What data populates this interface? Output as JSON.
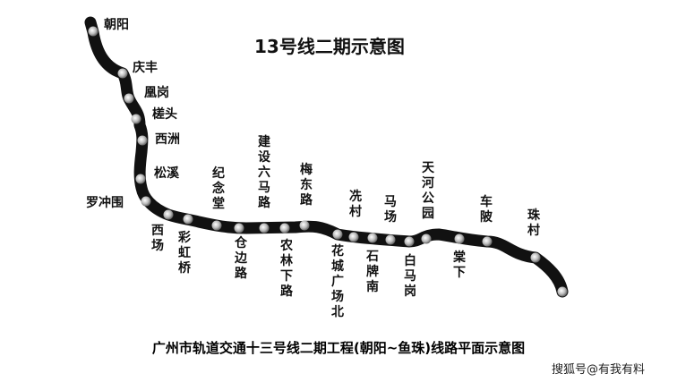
{
  "title": "13号线二期示意图",
  "caption": "广州市轨道交通十三号线二期工程(朝阳~鱼珠)线路平面示意图",
  "watermark": "搜狐号@有我有料",
  "line_color": "#111111",
  "stations": [
    {
      "name": "朝阳",
      "label": "right"
    },
    {
      "name": "庆丰",
      "label": "right"
    },
    {
      "name": "凰岗",
      "label": "right"
    },
    {
      "name": "槎头",
      "label": "right"
    },
    {
      "name": "西洲",
      "label": "right"
    },
    {
      "name": "松溪",
      "label": "right"
    },
    {
      "name": "罗冲围",
      "label": "left"
    },
    {
      "name": "西场",
      "label": "below"
    },
    {
      "name": "彩虹桥",
      "label": "below"
    },
    {
      "name": "纪念堂",
      "label": "above"
    },
    {
      "name": "仓边路",
      "label": "below"
    },
    {
      "name": "建设六马路",
      "label": "above"
    },
    {
      "name": "农林下路",
      "label": "below"
    },
    {
      "name": "梅东路",
      "label": "above"
    },
    {
      "name": "花城广场北",
      "label": "below"
    },
    {
      "name": "冼村",
      "label": "above"
    },
    {
      "name": "石牌南",
      "label": "below"
    },
    {
      "name": "马场",
      "label": "above"
    },
    {
      "name": "白马岗",
      "label": "below"
    },
    {
      "name": "天河公园",
      "label": "above"
    },
    {
      "name": "棠下",
      "label": "below"
    },
    {
      "name": "车陂",
      "label": "above"
    },
    {
      "name": "珠村",
      "label": "above"
    },
    {
      "name": "",
      "label": "none"
    }
  ]
}
